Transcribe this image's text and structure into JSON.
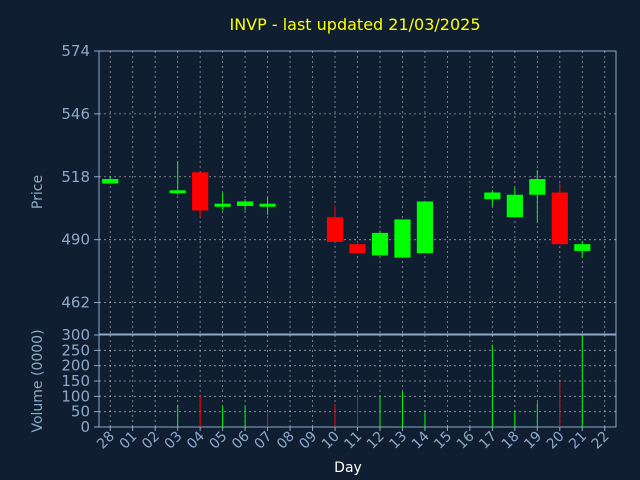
{
  "chart_data": {
    "type": "candlestick",
    "title": "INVP - last updated 21/03/2025",
    "xlabel": "Day",
    "ylabel": "Price",
    "volume_label": "Volume (0000)",
    "days": [
      "28",
      "01",
      "02",
      "03",
      "04",
      "05",
      "06",
      "07",
      "08",
      "09",
      "10",
      "11",
      "12",
      "13",
      "14",
      "15",
      "16",
      "17",
      "18",
      "19",
      "20",
      "21",
      "22"
    ],
    "price_ticks": [
      462,
      490,
      518,
      546,
      574
    ],
    "price_range": [
      448,
      574
    ],
    "volume_ticks": [
      0,
      50,
      100,
      150,
      200,
      250,
      300
    ],
    "volume_range": [
      0,
      300
    ],
    "grid": true,
    "colors": {
      "up": "#00ff00",
      "down": "#ff0000",
      "background": "#0f1f31",
      "axis": "#8fa8c8",
      "title": "#ffff00"
    },
    "candles": [
      {
        "day": "28",
        "open": 515,
        "close": 517,
        "high": 518,
        "low": 515
      },
      {
        "day": "03",
        "open": 511,
        "close": 512,
        "high": 525,
        "low": 510
      },
      {
        "day": "04",
        "open": 520,
        "close": 503,
        "high": 520,
        "low": 500
      },
      {
        "day": "05",
        "open": 505,
        "close": 506,
        "high": 511,
        "low": 503
      },
      {
        "day": "06",
        "open": 505,
        "close": 507,
        "high": 508,
        "low": 503
      },
      {
        "day": "07",
        "open": 506,
        "close": 506,
        "high": 509,
        "low": 501
      },
      {
        "day": "10",
        "open": 500,
        "close": 489,
        "high": 505,
        "low": 489
      },
      {
        "day": "11",
        "open": 488,
        "close": 484,
        "high": 489,
        "low": 484
      },
      {
        "day": "12",
        "open": 483,
        "close": 493,
        "high": 494,
        "low": 483
      },
      {
        "day": "13",
        "open": 482,
        "close": 499,
        "high": 499,
        "low": 482
      },
      {
        "day": "14",
        "open": 484,
        "close": 507,
        "high": 507,
        "low": 484
      },
      {
        "day": "17",
        "open": 508,
        "close": 511,
        "high": 512,
        "low": 505
      },
      {
        "day": "18",
        "open": 500,
        "close": 510,
        "high": 513,
        "low": 500
      },
      {
        "day": "19",
        "open": 510,
        "close": 517,
        "high": 521,
        "low": 498
      },
      {
        "day": "20",
        "open": 511,
        "close": 488,
        "high": 515,
        "low": 488
      },
      {
        "day": "21",
        "open": 485,
        "close": 488,
        "high": 489,
        "low": 482
      }
    ],
    "volume": [
      {
        "day": "03",
        "value": 72,
        "dir": "up"
      },
      {
        "day": "04",
        "value": 102,
        "dir": "down"
      },
      {
        "day": "05",
        "value": 68,
        "dir": "up"
      },
      {
        "day": "06",
        "value": 68,
        "dir": "up"
      },
      {
        "day": "07",
        "value": 48,
        "dir": "down"
      },
      {
        "day": "10",
        "value": 75,
        "dir": "down"
      },
      {
        "day": "11",
        "value": 105,
        "dir": "down"
      },
      {
        "day": "12",
        "value": 102,
        "dir": "up"
      },
      {
        "day": "13",
        "value": 115,
        "dir": "up"
      },
      {
        "day": "14",
        "value": 48,
        "dir": "up"
      },
      {
        "day": "17",
        "value": 268,
        "dir": "up"
      },
      {
        "day": "18",
        "value": 50,
        "dir": "up"
      },
      {
        "day": "19",
        "value": 80,
        "dir": "up"
      },
      {
        "day": "20",
        "value": 148,
        "dir": "down"
      },
      {
        "day": "21",
        "value": 300,
        "dir": "up"
      }
    ]
  }
}
